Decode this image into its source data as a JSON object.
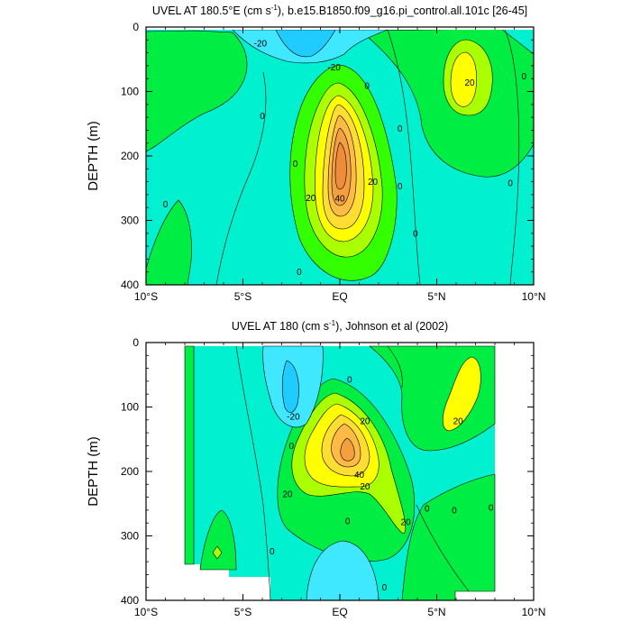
{
  "chart_data": [
    {
      "type": "contour",
      "title": "UVEL AT 180.5°E (cm s-1), b.e15.B1850.f09_g16.pi_control.all.101c [26-45]",
      "title_parts": {
        "pre": "UVEL AT 180.5°E (cm s",
        "sup": "-1",
        "post": "), b.e15.B1850.f09_g16.pi_control.all.101c [26-45]"
      },
      "ylabel": "DEPTH (m)",
      "xlim": [
        -10,
        10
      ],
      "ylim": [
        0,
        400
      ],
      "y_inverted": true,
      "x_ticks": [
        {
          "value": -10,
          "label": "10°S"
        },
        {
          "value": -5,
          "label": "5°S"
        },
        {
          "value": 0,
          "label": "EQ"
        },
        {
          "value": 5,
          "label": "5°N"
        },
        {
          "value": 10,
          "label": "10°N"
        }
      ],
      "y_ticks": [
        {
          "value": 0,
          "label": "0"
        },
        {
          "value": 100,
          "label": "100"
        },
        {
          "value": 200,
          "label": "200"
        },
        {
          "value": 300,
          "label": "300"
        },
        {
          "value": 400,
          "label": "400"
        }
      ],
      "contour_interval": 10,
      "contour_labels": [
        {
          "x": -4.0,
          "y": 138,
          "text": "0"
        },
        {
          "x": -9.0,
          "y": 275,
          "text": "0"
        },
        {
          "x": -4.1,
          "y": 25,
          "text": "-20"
        },
        {
          "x": -0.3,
          "y": 62,
          "text": "-20"
        },
        {
          "x": -2.3,
          "y": 212,
          "text": "0"
        },
        {
          "x": -2.1,
          "y": 380,
          "text": "0"
        },
        {
          "x": 0.0,
          "y": 266,
          "text": "40"
        },
        {
          "x": -1.5,
          "y": 265,
          "text": "20"
        },
        {
          "x": 1.7,
          "y": 240,
          "text": "20"
        },
        {
          "x": 1.4,
          "y": 91,
          "text": "0"
        },
        {
          "x": 3.1,
          "y": 157,
          "text": "0"
        },
        {
          "x": 3.1,
          "y": 247,
          "text": "0"
        },
        {
          "x": 3.9,
          "y": 320,
          "text": "0"
        },
        {
          "x": 6.7,
          "y": 86,
          "text": "20"
        },
        {
          "x": 9.5,
          "y": 76,
          "text": "0"
        },
        {
          "x": 8.8,
          "y": 242,
          "text": "0"
        }
      ],
      "features": [
        {
          "x": 0.0,
          "y": 190,
          "value": 60
        },
        {
          "x": 6.3,
          "y": 85,
          "value": 25
        },
        {
          "x": -1.5,
          "y": 25,
          "value": -30
        }
      ]
    },
    {
      "type": "contour",
      "title": "UVEL AT 180 (cm s-1), Johnson et al (2002)",
      "title_parts": {
        "pre": "UVEL AT 180 (cm s",
        "sup": "-1",
        "post": "), Johnson et al (2002)"
      },
      "ylabel": "DEPTH (m)",
      "xlim": [
        -10,
        10
      ],
      "ylim": [
        0,
        400
      ],
      "y_inverted": true,
      "x_ticks": [
        {
          "value": -10,
          "label": "10°S"
        },
        {
          "value": -5,
          "label": "5°S"
        },
        {
          "value": 0,
          "label": "EQ"
        },
        {
          "value": 5,
          "label": "5°N"
        },
        {
          "value": 10,
          "label": "10°N"
        }
      ],
      "y_ticks": [
        {
          "value": 0,
          "label": "0"
        },
        {
          "value": 100,
          "label": "100"
        },
        {
          "value": 200,
          "label": "200"
        },
        {
          "value": 300,
          "label": "300"
        },
        {
          "value": 400,
          "label": "400"
        }
      ],
      "contour_interval": 10,
      "contour_labels": [
        {
          "x": -2.5,
          "y": 160,
          "text": "0"
        },
        {
          "x": -2.4,
          "y": 115,
          "text": "-20"
        },
        {
          "x": -2.7,
          "y": 235,
          "text": "20"
        },
        {
          "x": 1.3,
          "y": 122,
          "text": "20"
        },
        {
          "x": 1.0,
          "y": 205,
          "text": "40"
        },
        {
          "x": 1.3,
          "y": 223,
          "text": "20"
        },
        {
          "x": 3.4,
          "y": 278,
          "text": "20"
        },
        {
          "x": 0.5,
          "y": 57,
          "text": "0"
        },
        {
          "x": 0.4,
          "y": 277,
          "text": "0"
        },
        {
          "x": -3.5,
          "y": 324,
          "text": "0"
        },
        {
          "x": 2.3,
          "y": 380,
          "text": "0"
        },
        {
          "x": 4.5,
          "y": 257,
          "text": "0"
        },
        {
          "x": 5.9,
          "y": 260,
          "text": "0"
        },
        {
          "x": 7.8,
          "y": 256,
          "text": "0"
        },
        {
          "x": 6.1,
          "y": 122,
          "text": "20"
        }
      ],
      "features": [
        {
          "x": 0.3,
          "y": 170,
          "value": 60
        },
        {
          "x": 6.3,
          "y": 85,
          "value": 25
        },
        {
          "x": -1.8,
          "y": 55,
          "value": -30
        },
        {
          "x": 0.5,
          "y": 345,
          "value": -10
        },
        {
          "x": -6.1,
          "y": 327,
          "value": 30
        }
      ],
      "data_extent": {
        "x": [
          -8.0,
          8.0
        ],
        "y": [
          5,
          400
        ]
      }
    }
  ]
}
